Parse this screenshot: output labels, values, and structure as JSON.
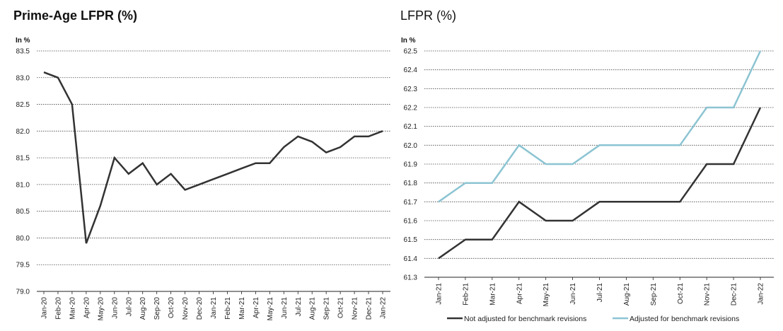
{
  "chart_data": [
    {
      "type": "line",
      "title": "Prime-Age LFPR (%)",
      "ylabel": "In %",
      "ylim": [
        79.0,
        83.5
      ],
      "yticks": [
        "79.0",
        "79.5",
        "80.0",
        "80.5",
        "81.0",
        "81.5",
        "82.0",
        "82.5",
        "83.0",
        "83.5"
      ],
      "grid": true,
      "categories": [
        "Jan-20",
        "Feb-20",
        "Mar-20",
        "Apr-20",
        "May-20",
        "Jun-20",
        "Jul-20",
        "Aug-20",
        "Sep-20",
        "Oct-20",
        "Nov-20",
        "Dec-20",
        "Jan-21",
        "Feb-21",
        "Mar-21",
        "Apr-21",
        "May-21",
        "Jun-21",
        "Jul-21",
        "Aug-21",
        "Sep-21",
        "Oct-21",
        "Nov-21",
        "Dec-21",
        "Jan-22"
      ],
      "series": [
        {
          "color": "#333333",
          "values": [
            83.1,
            83.0,
            82.5,
            79.9,
            80.6,
            81.5,
            81.2,
            81.4,
            81.0,
            81.2,
            80.9,
            81.0,
            81.1,
            81.2,
            81.3,
            81.4,
            81.4,
            81.7,
            81.9,
            81.8,
            81.6,
            81.7,
            81.9,
            81.9,
            82.0
          ]
        }
      ]
    },
    {
      "type": "line",
      "title": "LFPR (%)",
      "ylabel": "In %",
      "ylim": [
        61.3,
        62.5
      ],
      "yticks": [
        "61.3",
        "61.4",
        "61.5",
        "61.6",
        "61.7",
        "61.8",
        "61.9",
        "62.0",
        "62.1",
        "62.2",
        "62.3",
        "62.4",
        "62.5"
      ],
      "grid": true,
      "legend_position": "bottom",
      "categories": [
        "Jan-21",
        "Feb-21",
        "Mar-21",
        "Apr-21",
        "May-21",
        "Jun-21",
        "Jul-21",
        "Aug-21",
        "Sep-21",
        "Oct-21",
        "Nov-21",
        "Dec-21",
        "Jan-22"
      ],
      "series": [
        {
          "name": "Not adjusted for benchmark revisions",
          "color": "#333333",
          "values": [
            61.4,
            61.5,
            61.5,
            61.7,
            61.6,
            61.6,
            61.7,
            61.7,
            61.7,
            61.7,
            61.9,
            61.9,
            62.2
          ]
        },
        {
          "name": "Adjusted for benchmark revisions",
          "color": "#8cc4d2",
          "values": [
            61.7,
            61.8,
            61.8,
            62.0,
            61.9,
            61.9,
            62.0,
            62.0,
            62.0,
            62.0,
            62.2,
            62.2,
            62.5
          ]
        }
      ]
    }
  ]
}
